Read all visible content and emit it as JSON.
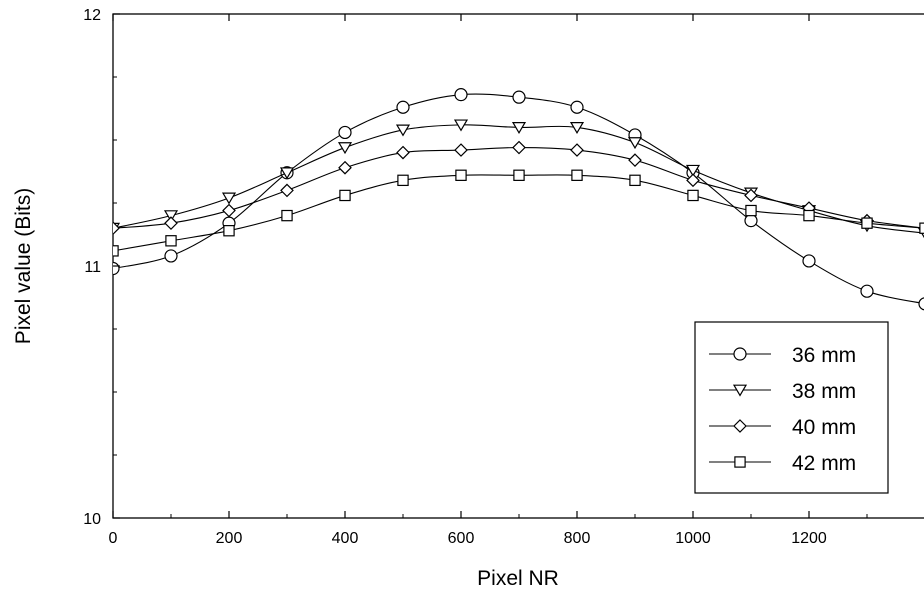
{
  "colors": {
    "line": "#000000",
    "background": "#ffffff",
    "marker_fill": "#ffffff"
  },
  "chart_data": {
    "type": "line",
    "title": "",
    "xlabel": "Pixel NR",
    "ylabel": "Pixel value (Bits)",
    "xlim": [
      0,
      1400
    ],
    "ylim": [
      10,
      12
    ],
    "xticks": [
      "0",
      "200",
      "400",
      "600",
      "800",
      "1000",
      "1200"
    ],
    "yticks": [
      "10",
      "11",
      "12"
    ],
    "grid": false,
    "legend_position": "lower-right",
    "x": [
      0,
      100,
      200,
      300,
      400,
      500,
      600,
      700,
      800,
      900,
      1000,
      1100,
      1200,
      1300,
      1400
    ],
    "series": [
      {
        "name": "36 mm",
        "marker": "circle",
        "values": [
          10.99,
          11.04,
          11.17,
          11.37,
          11.53,
          11.63,
          11.68,
          11.67,
          11.63,
          11.52,
          11.37,
          11.18,
          11.02,
          10.9,
          10.85
        ]
      },
      {
        "name": "38 mm",
        "marker": "triangle-down",
        "values": [
          11.15,
          11.2,
          11.27,
          11.37,
          11.47,
          11.54,
          11.56,
          11.55,
          11.55,
          11.49,
          11.38,
          11.29,
          11.22,
          11.16,
          11.13
        ]
      },
      {
        "name": "40 mm",
        "marker": "diamond",
        "values": [
          11.15,
          11.17,
          11.22,
          11.3,
          11.39,
          11.45,
          11.46,
          11.47,
          11.46,
          11.42,
          11.34,
          11.28,
          11.23,
          11.18,
          11.15
        ]
      },
      {
        "name": "42 mm",
        "marker": "square",
        "values": [
          11.06,
          11.1,
          11.14,
          11.2,
          11.28,
          11.34,
          11.36,
          11.36,
          11.36,
          11.34,
          11.28,
          11.22,
          11.2,
          11.17,
          11.15
        ]
      }
    ]
  }
}
